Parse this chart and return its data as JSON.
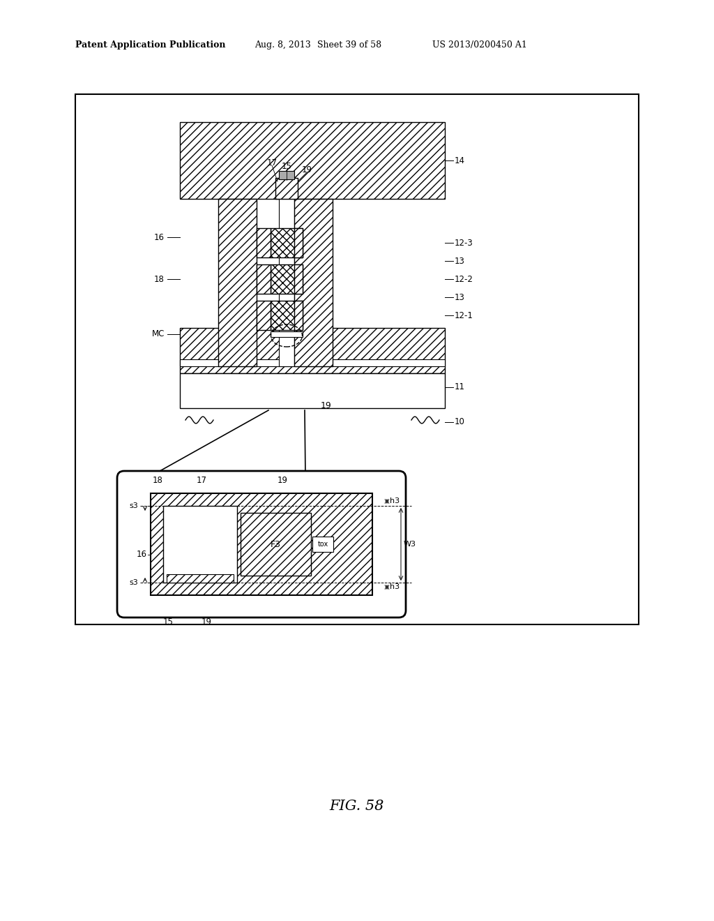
{
  "bg_color": "#ffffff",
  "header_text": "Patent Application Publication",
  "header_date": "Aug. 8, 2013",
  "header_sheet": "Sheet 39 of 58",
  "header_patent": "US 2013/0200450 A1",
  "figure_label": "FIG. 58",
  "line_color": "#000000"
}
